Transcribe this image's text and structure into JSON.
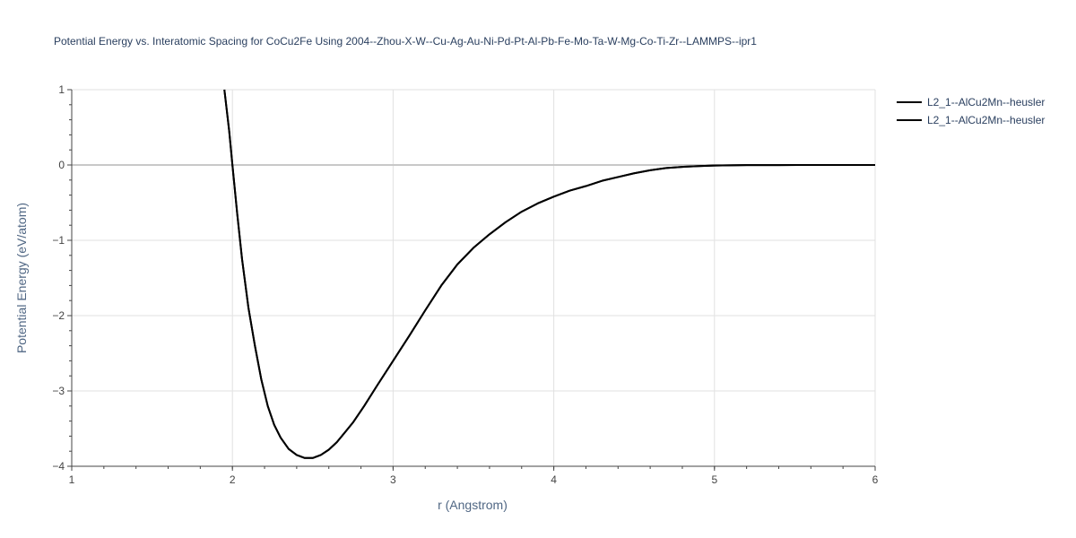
{
  "chart_data": {
    "type": "line",
    "title": "Potential Energy vs. Interatomic Spacing for CoCu2Fe Using 2004--Zhou-X-W--Cu-Ag-Au-Ni-Pd-Pt-Al-Pb-Fe-Mo-Ta-W-Mg-Co-Ti-Zr--LAMMPS--ipr1",
    "xlabel": "r (Angstrom)",
    "ylabel": "Potential Energy (eV/atom)",
    "xlim": [
      1,
      6
    ],
    "ylim": [
      -4,
      1
    ],
    "xticks": [
      1,
      2,
      3,
      4,
      5,
      6
    ],
    "yticks": [
      1,
      0,
      -1,
      -2,
      -3,
      -4
    ],
    "xtick_labels": [
      "1",
      "2",
      "3",
      "4",
      "5",
      "6"
    ],
    "ytick_labels": [
      "1",
      "0",
      "−1",
      "−2",
      "−3",
      "−4"
    ],
    "grid": true,
    "legend_position": "top-right",
    "series": [
      {
        "name": "L2_1--AlCu2Mn--heusler",
        "color": "#000000",
        "x": [
          1.95,
          1.98,
          2.0,
          2.03,
          2.06,
          2.1,
          2.14,
          2.18,
          2.22,
          2.26,
          2.3,
          2.35,
          2.4,
          2.45,
          2.5,
          2.55,
          2.6,
          2.65,
          2.7,
          2.75,
          2.82,
          2.9,
          3.0,
          3.1,
          3.2,
          3.3,
          3.4,
          3.5,
          3.6,
          3.7,
          3.8,
          3.9,
          4.0,
          4.1,
          4.2,
          4.3,
          4.4,
          4.5,
          4.6,
          4.7,
          4.8,
          4.9,
          5.0,
          5.1,
          5.2,
          5.4,
          5.6,
          5.8,
          6.0
        ],
        "y": [
          1.0,
          0.45,
          0.0,
          -0.65,
          -1.25,
          -1.9,
          -2.4,
          -2.85,
          -3.2,
          -3.45,
          -3.62,
          -3.77,
          -3.85,
          -3.89,
          -3.89,
          -3.85,
          -3.78,
          -3.68,
          -3.55,
          -3.42,
          -3.2,
          -2.93,
          -2.6,
          -2.27,
          -1.93,
          -1.6,
          -1.32,
          -1.1,
          -0.92,
          -0.76,
          -0.62,
          -0.51,
          -0.42,
          -0.34,
          -0.28,
          -0.21,
          -0.16,
          -0.11,
          -0.07,
          -0.04,
          -0.025,
          -0.015,
          -0.008,
          -0.004,
          -0.002,
          -0.001,
          0.0,
          0.0,
          0.0
        ]
      },
      {
        "name": "L2_1--AlCu2Mn--heusler",
        "color": "#000000",
        "x": [
          1.95,
          1.98,
          2.0,
          2.03,
          2.06,
          2.1,
          2.14,
          2.18,
          2.22,
          2.26,
          2.3,
          2.35,
          2.4,
          2.45,
          2.5,
          2.55,
          2.6,
          2.65,
          2.7,
          2.75,
          2.82,
          2.9,
          3.0,
          3.1,
          3.2,
          3.3,
          3.4,
          3.5,
          3.6,
          3.7,
          3.8,
          3.9,
          4.0,
          4.1,
          4.2,
          4.3,
          4.4,
          4.5,
          4.6,
          4.7,
          4.8,
          4.9,
          5.0,
          5.1,
          5.2,
          5.4,
          5.6,
          5.8,
          6.0
        ],
        "y": [
          1.0,
          0.45,
          0.0,
          -0.65,
          -1.25,
          -1.9,
          -2.4,
          -2.85,
          -3.2,
          -3.45,
          -3.62,
          -3.77,
          -3.85,
          -3.89,
          -3.89,
          -3.85,
          -3.78,
          -3.68,
          -3.55,
          -3.42,
          -3.2,
          -2.93,
          -2.6,
          -2.27,
          -1.93,
          -1.6,
          -1.32,
          -1.1,
          -0.92,
          -0.76,
          -0.62,
          -0.51,
          -0.42,
          -0.34,
          -0.28,
          -0.21,
          -0.16,
          -0.11,
          -0.07,
          -0.04,
          -0.025,
          -0.015,
          -0.008,
          -0.004,
          -0.002,
          -0.001,
          0.0,
          0.0,
          0.0
        ]
      }
    ]
  }
}
